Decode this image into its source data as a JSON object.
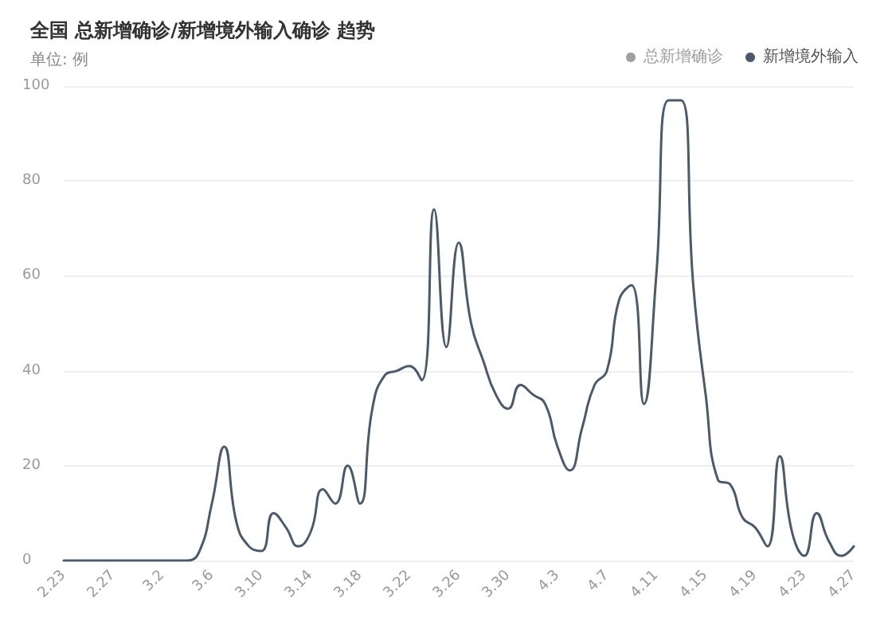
{
  "chart_data": {
    "type": "line",
    "title": "全国 总新增确诊/新增境外输入确诊 趋势",
    "subtitle": "单位: 例",
    "categories": [
      "2.23",
      null,
      null,
      null,
      "2.27",
      null,
      null,
      null,
      "3.2",
      null,
      null,
      null,
      "3.6",
      null,
      null,
      null,
      "3.10",
      null,
      null,
      null,
      "3.14",
      null,
      null,
      null,
      "3.18",
      null,
      null,
      null,
      "3.22",
      null,
      null,
      null,
      "3.26",
      null,
      null,
      null,
      "3.30",
      null,
      null,
      null,
      "4.3",
      null,
      null,
      null,
      "4.7",
      null,
      null,
      null,
      "4.11",
      null,
      null,
      null,
      "4.15",
      null,
      null,
      null,
      "4.19",
      null,
      null,
      null,
      "4.23",
      null,
      null,
      null,
      "4.27"
    ],
    "series": [
      {
        "name": "总新增确诊",
        "color": "#a0a0a0",
        "values": [
          null,
          null,
          null,
          null,
          null,
          null,
          null,
          null,
          null,
          null,
          null,
          null,
          null,
          null,
          null,
          null,
          null,
          null,
          null,
          null,
          null,
          null,
          null,
          null,
          null,
          null,
          null,
          null,
          null,
          null,
          null,
          null,
          null,
          null,
          null,
          null,
          null,
          null,
          null,
          null,
          null,
          null,
          null,
          null,
          null,
          null,
          null,
          null,
          null,
          null,
          null,
          null,
          null,
          null,
          null,
          null,
          null,
          null,
          null,
          null,
          null,
          null,
          null,
          null,
          null
        ]
      },
      {
        "name": "新增境外输入",
        "color": "#4a5a6b",
        "values": [
          0,
          0,
          0,
          0,
          0,
          0,
          0,
          0,
          0,
          0,
          0,
          2,
          12,
          24,
          8,
          3,
          2,
          10,
          7,
          3,
          6,
          15,
          12,
          20,
          12,
          32,
          39,
          40,
          41,
          38,
          74,
          45,
          67,
          50,
          42,
          35,
          32,
          37,
          35,
          33,
          24,
          19,
          28,
          37,
          40,
          55,
          58,
          33,
          60,
          97,
          97,
          58,
          35,
          17,
          16,
          9,
          7,
          3,
          22,
          6,
          1,
          10,
          4,
          1,
          3
        ]
      }
    ],
    "ylim": [
      0,
      100
    ],
    "yticks": [
      0,
      20,
      40,
      60,
      80,
      100
    ],
    "grid": "y",
    "legend": "top right",
    "marker": "none",
    "line_style": "solid"
  }
}
